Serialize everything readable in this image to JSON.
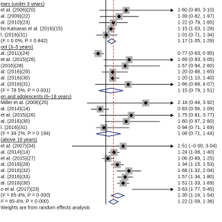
{
  "chart_data": {
    "type": "forest",
    "xlim": [
      0,
      3
    ],
    "reference_line": 1,
    "overall_line_color": "#c0392b",
    "square_color": "#b0b0b0",
    "diamond_color": "#1f2d7a",
    "rows": [
      {
        "kind": "header",
        "label": "ears (under 3 years)"
      },
      {
        "kind": "study",
        "label": "et al. (2006)(20)",
        "estimate": 1.6,
        "lower": 0.8,
        "upper": 3.1,
        "ci_label": "1·60 (0·80, 3·10)"
      },
      {
        "kind": "study",
        "label": "al. (2009)(22)",
        "estimate": 1.39,
        "lower": 0.82,
        "upper": 1.97,
        "ci_label": "1·39 (0·82, 1·97)"
      },
      {
        "kind": "study",
        "label": "al. (2010)(23)",
        "estimate": 1.22,
        "lower": 0.79,
        "upper": 1.65,
        "ci_label": "1·22 (0·79, 1·65)"
      },
      {
        "kind": "study",
        "label": "bs-Katsaras et al. (2016)(15)",
        "estimate": 1.15,
        "lower": 1.03,
        "upper": 1.28,
        "ci_label": "1·15 (1·03, 1·28)"
      },
      {
        "kind": "study",
        "label": "l. (2016)(31)",
        "estimate": 1.01,
        "lower": 0.71,
        "upper": 1.34,
        "ci_label": "1·01 (0·71, 1·34)"
      },
      {
        "kind": "subtotal",
        "label": "(I² = 0·0%, P = 0·842)",
        "estimate": 1.17,
        "lower": 1.05,
        "upper": 1.29,
        "ci_label": "1·17 (1·05, 1·29)"
      },
      {
        "kind": "header",
        "label": "ool (3–5 years)"
      },
      {
        "kind": "study",
        "label": "al. (2011)(24)",
        "estimate": 0.77,
        "lower": 0.63,
        "upper": 0.95,
        "ci_label": "0·77 (0·63, 0·95)"
      },
      {
        "kind": "study",
        "label": "et al. (2015)(26)",
        "estimate": 1.69,
        "lower": 0.93,
        "upper": 3.05,
        "ci_label": "1·69 (0·93, 3·05)"
      },
      {
        "kind": "study",
        "label": "(2016)(28)",
        "estimate": 1.57,
        "lower": 0.94,
        "upper": 2.6,
        "ci_label": "1·57 (0·94, 2·60)"
      },
      {
        "kind": "study",
        "label": "al. (2016)(29)",
        "estimate": 1.2,
        "lower": 0.88,
        "upper": 1.65,
        "ci_label": "1·20 (0·88, 1·65)"
      },
      {
        "kind": "study",
        "label": "al. (2016)(30)",
        "estimate": 1.2,
        "lower": 1.1,
        "upper": 1.4,
        "ci_label": "1·20 (1·10, 1·40)"
      },
      {
        "kind": "study",
        "label": "al. (2016)(31)",
        "estimate": 1.66,
        "lower": 0.68,
        "upper": 4.07,
        "ci_label": "1·66 (0·68, 4·07)"
      },
      {
        "kind": "subtotal",
        "label": "(I² = 78·5%, P = 0·001)",
        "estimate": 1.15,
        "lower": 0.79,
        "upper": 1.51,
        "ci_label": "1·15 (0·79, 1·51)"
      },
      {
        "kind": "header",
        "label": "en and adolescents (6–18 years)"
      },
      {
        "kind": "study",
        "label": "Miller et al. (2009)(25)",
        "estimate": 2.18,
        "lower": 0.44,
        "upper": 3.92,
        "ci_label": "2·18 (0·44, 3·92)"
      },
      {
        "kind": "study",
        "label": "al. (2014)(14)",
        "estimate": 0.83,
        "lower": 0.56,
        "upper": 1.09,
        "ci_label": "0·83 (0·56, 1·09)"
      },
      {
        "kind": "study",
        "label": "et al. (2015)(26)",
        "estimate": 1.75,
        "lower": 0.81,
        "upper": 3.77,
        "ci_label": "1·75 (0·81, 3·77)"
      },
      {
        "kind": "study",
        "label": "al. (2016)(30)",
        "estimate": 1.6,
        "lower": 0.97,
        "upper": 2.6,
        "ci_label": "1·60 (0·97, 2·60)"
      },
      {
        "kind": "study",
        "label": "l. (2016)(31)",
        "estimate": 0.94,
        "lower": 0.71,
        "upper": 1.69,
        "ci_label": "0·94 (0·71, 1·69)"
      },
      {
        "kind": "subtotal",
        "label": "(I² = 34·2%, P = 0·194)",
        "estimate": 1.08,
        "lower": 0.71,
        "upper": 1.44,
        "ci_label": "1·08 (0·71, 1·44)"
      },
      {
        "kind": "header",
        "label": "(above 18 years)"
      },
      {
        "kind": "study",
        "label": "et al. (2007)(34)",
        "estimate": 1.51,
        "lower": -0.0,
        "upper": 3.04,
        "ci_label": "1·51 (−0·00, 3·04)"
      },
      {
        "kind": "study",
        "label": "al. (2014)(14)",
        "estimate": 1.24,
        "lower": 1.08,
        "upper": 1.4,
        "ci_label": "1·24 (1·08, 1·40)"
      },
      {
        "kind": "study",
        "label": "et al. (2015)(27)",
        "estimate": 1.06,
        "lower": 0.89,
        "upper": 1.25,
        "ci_label": "1·06 (0·89, 1·25)"
      },
      {
        "kind": "study",
        "label": "al. (2016)(28)",
        "estimate": 1.34,
        "lower": 1.15,
        "upper": 1.53,
        "ci_label": "1·34 (1·15, 1·53)"
      },
      {
        "kind": "study",
        "label": "al. (2016)(32)",
        "estimate": 1.68,
        "lower": 1.32,
        "upper": 2.04,
        "ci_label": "1·68 (1·32, 2·04)"
      },
      {
        "kind": "study",
        "label": "al. (2016)(33)",
        "estimate": 1.57,
        "lower": 1.34,
        "upper": 1.8,
        "ci_label": "1·57 (1·34, 1·80)"
      },
      {
        "kind": "study",
        "label": "al. (2016)(30)",
        "estimate": 1.51,
        "lower": 1.33,
        "upper": 1.69,
        "ci_label": "1·51 (1·33, 1·69)"
      },
      {
        "kind": "study",
        "label": "o et al. (2017)(23)",
        "estimate": 3.63,
        "lower": 1.77,
        "upper": 5.45,
        "ci_label": "3·63 (1·77, 5·45)"
      },
      {
        "kind": "subtotal",
        "label": "(I² = 65·4%, P = 0·000)",
        "estimate": 1.35,
        "lower": 1.16,
        "upper": 1.54,
        "ci_label": "1·35 (1·16, 1·54)"
      },
      {
        "kind": "overall",
        "label": "I² = 65·4%, P = 0·000)",
        "estimate": 1.22,
        "lower": 1.09,
        "upper": 1.36,
        "ci_label": "1·22 (1·09, 1·36)"
      },
      {
        "kind": "note",
        "label": "Weights are from random effects analysis"
      }
    ]
  }
}
